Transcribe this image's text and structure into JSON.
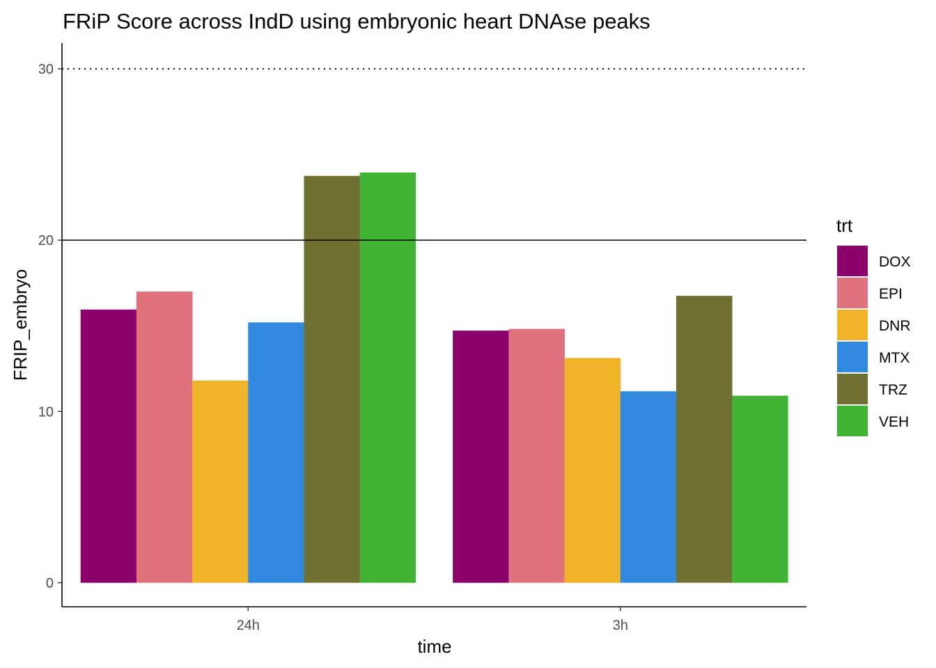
{
  "chart_data": {
    "type": "bar",
    "title": "FRiP Score across IndD using embryonic heart DNAse peaks",
    "xlabel": "time",
    "ylabel": "FRIP_embryo",
    "ylim": [
      -1.4,
      31.5
    ],
    "yticks": [
      0,
      10,
      20,
      30
    ],
    "categories": [
      "24h",
      "3h"
    ],
    "legend_title": "trt",
    "legend_position": "right",
    "grid": false,
    "reference_lines": [
      {
        "y": 30,
        "style": "dotted"
      },
      {
        "y": 20,
        "style": "solid"
      }
    ],
    "series": [
      {
        "name": "DOX",
        "color": "#8B006B",
        "values": [
          15.95,
          14.72
        ]
      },
      {
        "name": "EPI",
        "color": "#E0727D",
        "values": [
          17.0,
          14.82
        ]
      },
      {
        "name": "DNR",
        "color": "#F0B429",
        "values": [
          11.8,
          13.12
        ]
      },
      {
        "name": "MTX",
        "color": "#3388E0",
        "values": [
          15.2,
          11.18
        ]
      },
      {
        "name": "TRZ",
        "color": "#707033",
        "values": [
          23.75,
          16.75
        ]
      },
      {
        "name": "VEH",
        "color": "#41B335",
        "values": [
          23.95,
          10.92
        ]
      }
    ]
  }
}
